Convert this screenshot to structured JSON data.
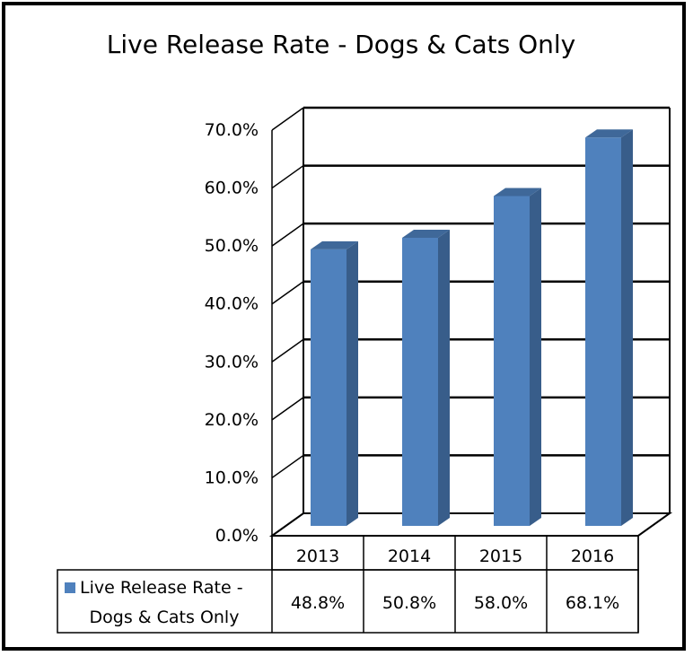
{
  "chart_data": {
    "type": "bar",
    "title": "Live Release Rate - Dogs & Cats Only",
    "categories": [
      "2013",
      "2014",
      "2015",
      "2016"
    ],
    "series": [
      {
        "name": "Live Release Rate - Dogs & Cats Only",
        "name_lines": [
          "Live Release Rate -",
          "Dogs & Cats Only"
        ],
        "values": [
          48.8,
          50.8,
          58.0,
          68.1
        ],
        "labels": [
          "48.8%",
          "50.8%",
          "58.0%",
          "68.1%"
        ],
        "color": "#4F81BD"
      }
    ],
    "y_ticks": [
      "0.0%",
      "10.0%",
      "20.0%",
      "30.0%",
      "40.0%",
      "50.0%",
      "60.0%",
      "70.0%"
    ],
    "ylim": [
      0,
      70
    ],
    "grid": true,
    "style": "3d-column",
    "legend": "data-table"
  }
}
